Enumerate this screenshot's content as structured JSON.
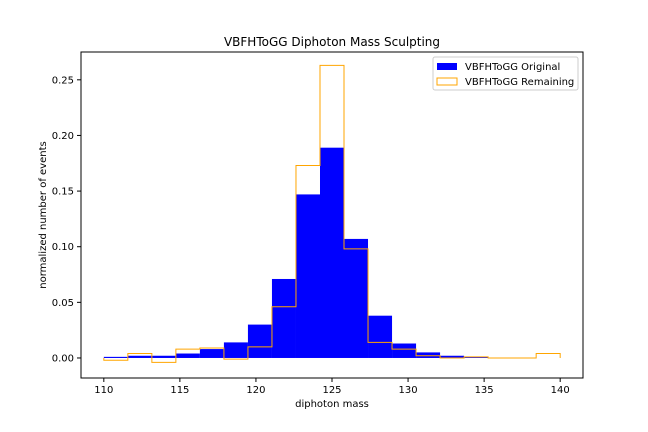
{
  "chart_data": {
    "type": "histogram",
    "title": "VBFHToGG Diphoton Mass Sculpting",
    "xlabel": "diphoton mass",
    "ylabel": "normalized number of events",
    "xlim": [
      108.5,
      141.5
    ],
    "ylim": [
      -0.018,
      0.275
    ],
    "xticks": [
      110,
      115,
      120,
      125,
      130,
      135,
      140
    ],
    "yticks": [
      0.0,
      0.05,
      0.1,
      0.15,
      0.2,
      0.25
    ],
    "xtick_labels": [
      "110",
      "115",
      "120",
      "125",
      "130",
      "135",
      "140"
    ],
    "ytick_labels": [
      "0.00",
      "0.05",
      "0.10",
      "0.15",
      "0.20",
      "0.25"
    ],
    "bin_edges": [
      110,
      111.579,
      113.158,
      114.737,
      116.316,
      117.895,
      119.474,
      121.053,
      122.632,
      124.211,
      125.789,
      127.368,
      128.947,
      130.526,
      132.105,
      133.684,
      135.263,
      136.842,
      138.421,
      140
    ],
    "legend_position": "upper right",
    "grid": false,
    "series": [
      {
        "name": "VBFHToGG Original",
        "style": "filled",
        "color": "#0000ff",
        "values": [
          0.001,
          0.002,
          0.002,
          0.004,
          0.008,
          0.014,
          0.03,
          0.071,
          0.147,
          0.189,
          0.107,
          0.038,
          0.013,
          0.005,
          0.002,
          0.001,
          0.0,
          0.0,
          0.0
        ]
      },
      {
        "name": "VBFHToGG Remaining",
        "style": "step",
        "color": "#ffa500",
        "values": [
          -0.002,
          0.004,
          -0.004,
          0.008,
          0.009,
          -0.001,
          0.01,
          0.046,
          0.173,
          0.263,
          0.098,
          0.014,
          0.008,
          0.002,
          0.0,
          0.001,
          0.0,
          0.0,
          0.004
        ]
      }
    ]
  }
}
